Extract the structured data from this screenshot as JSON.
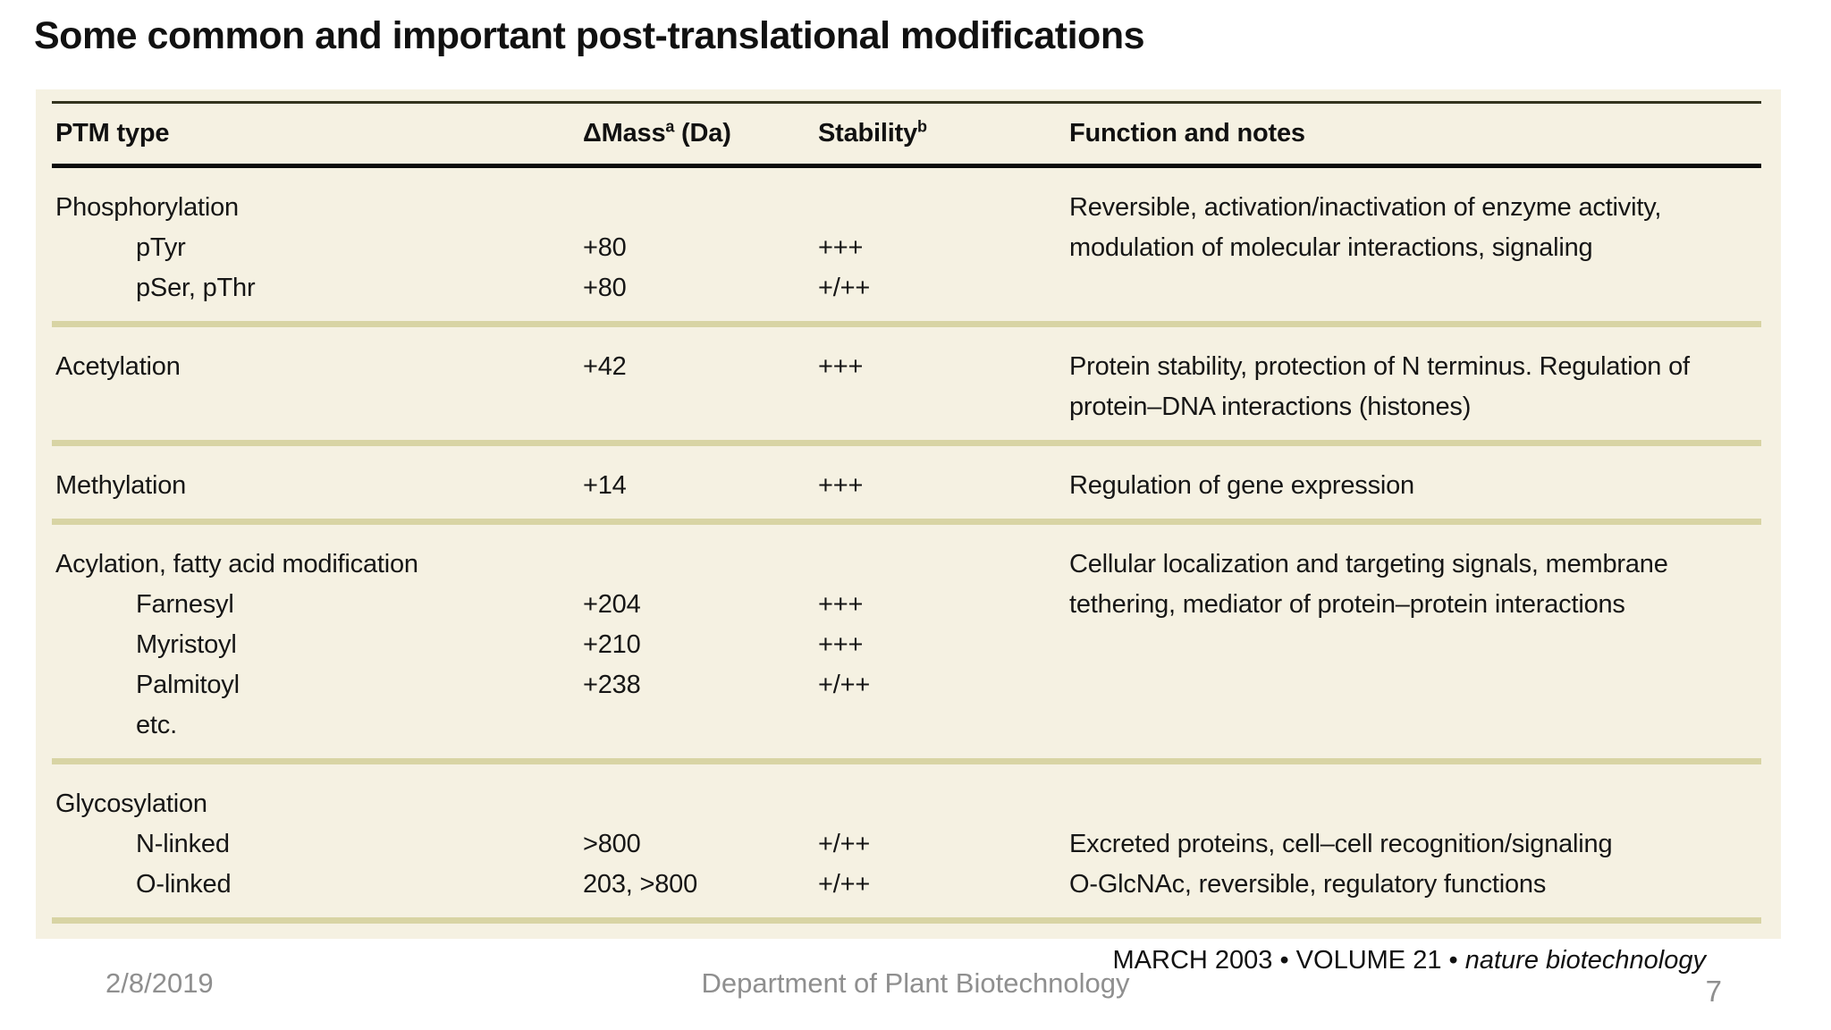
{
  "slide": {
    "title": "Some common and important post-translational modifications",
    "footer": {
      "date": "2/8/2019",
      "department": "Department of Plant Biotechnology",
      "page_number": "7",
      "credit_prefix": "MARCH 2003 • VOLUME 21 • ",
      "credit_journal": "nature biotechnology"
    }
  },
  "colors": {
    "table_background": "#f5f1e2",
    "section_divider": "#d8d4a4",
    "header_top_rule": "#34341f",
    "header_bottom_rule": "#0c0c0c",
    "table_text": "#161616",
    "footer_text": "#8f8f8f"
  },
  "table": {
    "columns": [
      {
        "label": "PTM type",
        "sup": "",
        "suffix": ""
      },
      {
        "label": "ΔMass",
        "sup": "a",
        "suffix": " (Da)"
      },
      {
        "label": "Stability",
        "sup": "b",
        "suffix": ""
      },
      {
        "label": "Function and notes",
        "sup": "",
        "suffix": ""
      }
    ],
    "sections": [
      {
        "rows": [
          {
            "name": "Phosphorylation",
            "indent": false,
            "mass": "",
            "stability": "",
            "function": "Reversible, activation/inactivation of enzyme activity,"
          },
          {
            "name": "pTyr",
            "indent": true,
            "mass": "+80",
            "stability": "+++",
            "function": "modulation of molecular interactions, signaling"
          },
          {
            "name": "pSer, pThr",
            "indent": true,
            "mass": "+80",
            "stability": "+/++",
            "function": ""
          }
        ]
      },
      {
        "rows": [
          {
            "name": "Acetylation",
            "indent": false,
            "mass": "+42",
            "stability": "+++",
            "function": "Protein stability, protection of N terminus. Regulation of"
          },
          {
            "name": "",
            "indent": false,
            "mass": "",
            "stability": "",
            "function": "protein–DNA interactions (histones)"
          }
        ]
      },
      {
        "rows": [
          {
            "name": "Methylation",
            "indent": false,
            "mass": "+14",
            "stability": "+++",
            "function": "Regulation of gene expression"
          }
        ]
      },
      {
        "rows": [
          {
            "name": "Acylation, fatty acid modification",
            "indent": false,
            "mass": "",
            "stability": "",
            "function": "Cellular localization and targeting signals, membrane"
          },
          {
            "name": "Farnesyl",
            "indent": true,
            "mass": "+204",
            "stability": "+++",
            "function": "tethering, mediator of protein–protein interactions"
          },
          {
            "name": "Myristoyl",
            "indent": true,
            "mass": "+210",
            "stability": "+++",
            "function": ""
          },
          {
            "name": "Palmitoyl",
            "indent": true,
            "mass": "+238",
            "stability": "+/++",
            "function": ""
          },
          {
            "name": "etc.",
            "indent": true,
            "mass": "",
            "stability": "",
            "function": ""
          }
        ]
      },
      {
        "rows": [
          {
            "name": "Glycosylation",
            "indent": false,
            "mass": "",
            "stability": "",
            "function": ""
          },
          {
            "name": "N-linked",
            "indent": true,
            "mass": ">800",
            "stability": "+/++",
            "function": "Excreted proteins, cell–cell recognition/signaling"
          },
          {
            "name": "O-linked",
            "indent": true,
            "mass": "203, >800",
            "stability": "+/++",
            "function": "O-GlcNAc, reversible, regulatory functions"
          }
        ]
      }
    ]
  }
}
